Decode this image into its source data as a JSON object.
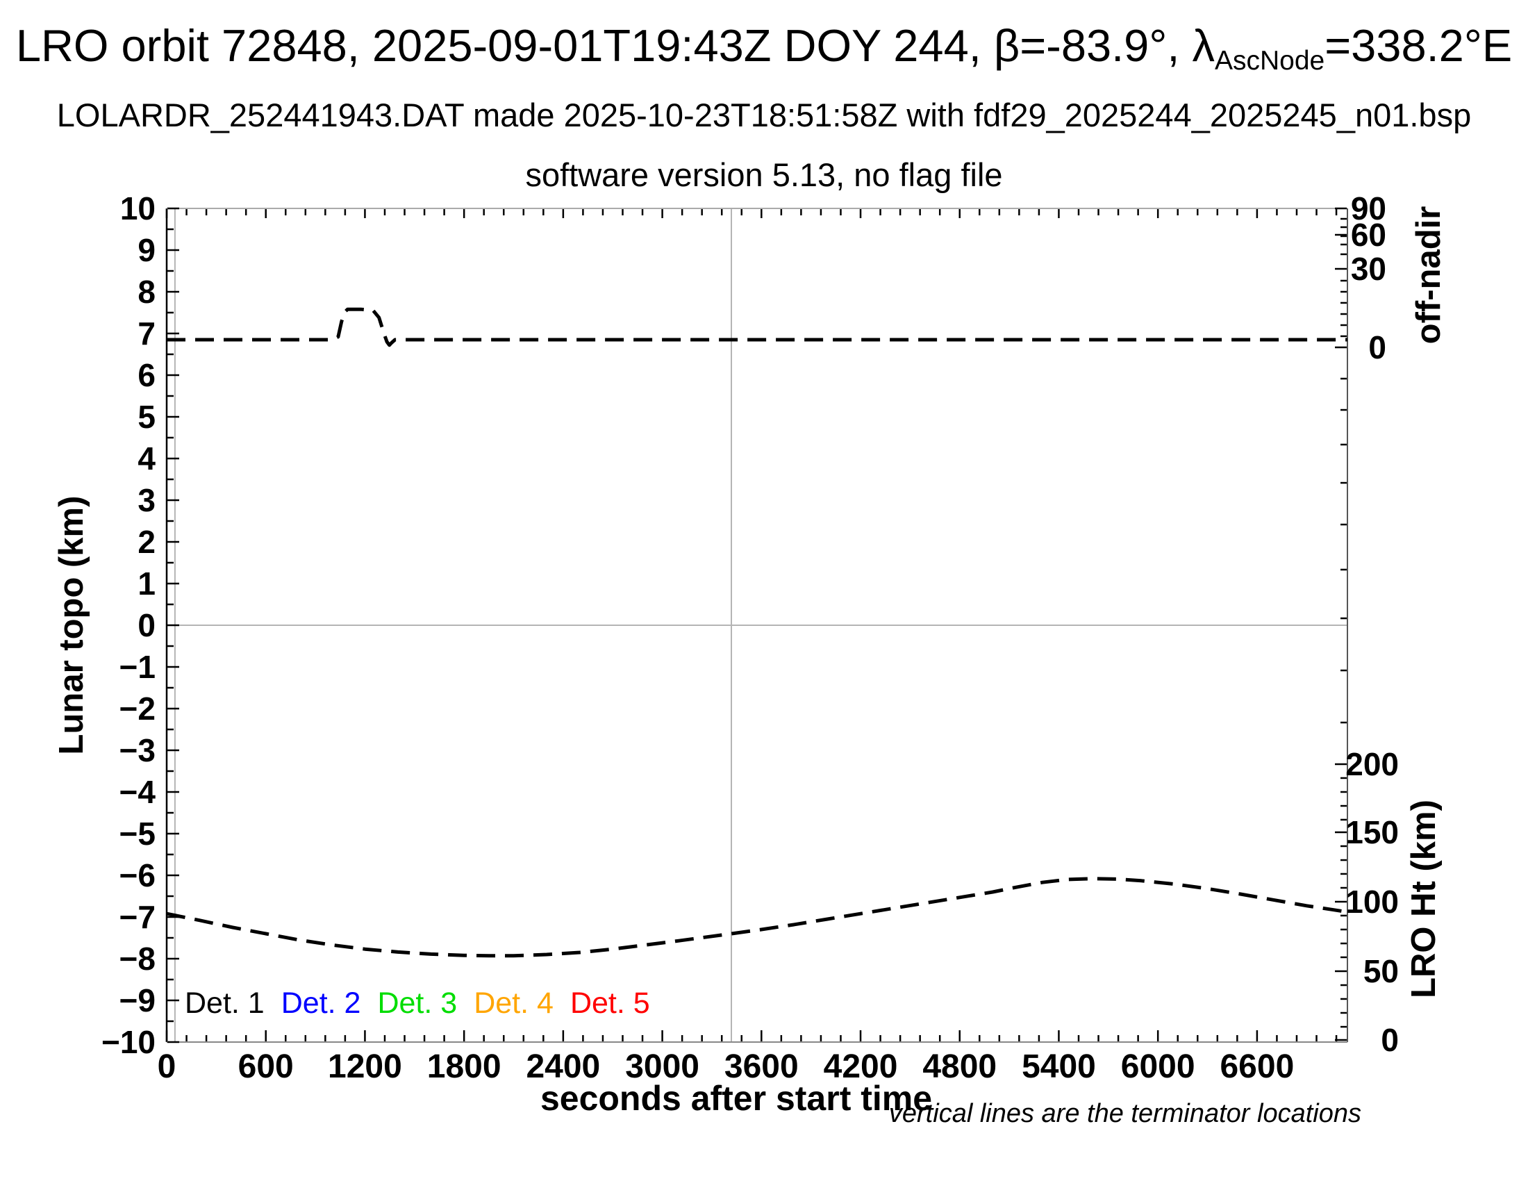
{
  "header": {
    "title_prefix": "LRO orbit 72848, 2025-09-01T19:43Z DOY 244, β=-83.9°, λ",
    "title_subscript": "AscNode",
    "title_suffix": "=338.2°E",
    "subtitle1": "LOLARDR_252441943.DAT made 2025-10-23T18:51:58Z with fdf29_2025244_2025245_n01.bsp",
    "subtitle2": "software version 5.13, no flag file"
  },
  "chart_data": {
    "type": "line",
    "title": "LRO orbit 72848, 2025-09-01T19:43Z DOY 244, β=-83.9°, λAscNode=338.2°E",
    "x_axis": {
      "label": "seconds after start time",
      "min": 0,
      "max": 7147,
      "major_step": 600,
      "minor_step": 120,
      "labeled_ticks": [
        0,
        600,
        1200,
        1800,
        2400,
        3000,
        3600,
        4200,
        4800,
        5400,
        6000,
        6600
      ]
    },
    "y_left": {
      "label": "Lunar topo (km)",
      "min": -10,
      "max": 10,
      "major_step": 1,
      "minor_step": 0.5
    },
    "y_right_offnadir": {
      "label": "off-nadir",
      "scale": "nonlinear (degrees)",
      "ticks": [
        {
          "value": "90",
          "frac": 0.0
        },
        {
          "value": "60",
          "frac": 0.0317
        },
        {
          "value": "30",
          "frac": 0.0725
        },
        {
          "value": "0",
          "frac": 0.1667
        }
      ],
      "minor_fracs": [
        0.0125,
        0.0225,
        0.0333,
        0.0433,
        0.055,
        0.0867,
        0.1,
        0.1133,
        0.1267,
        0.14,
        0.1533,
        0.2042,
        0.2417,
        0.2833,
        0.3292,
        0.3792,
        0.4333,
        0.4917,
        0.5542,
        0.6167
      ]
    },
    "y_right_ht": {
      "label": "LRO Ht (km)",
      "scale": "linear (km)",
      "ticks": [
        {
          "value": "200",
          "frac": 0.6667
        },
        {
          "value": "150",
          "frac": 0.7483
        },
        {
          "value": "100",
          "frac": 0.8317
        },
        {
          "value": "50",
          "frac": 0.915
        },
        {
          "value": "0",
          "frac": 0.9975
        }
      ],
      "minor_fracs": [
        0.6833,
        0.7,
        0.7167,
        0.7333,
        0.765,
        0.7817,
        0.7983,
        0.815,
        0.8483,
        0.865,
        0.8817,
        0.8983,
        0.9317,
        0.9483,
        0.965,
        0.9817
      ]
    },
    "reference_lines": {
      "zero_topo_line": 0,
      "terminators_sec": [
        50,
        3418
      ]
    },
    "series": [
      {
        "name": "off-nadir angle",
        "display_axis": "y_left",
        "style": "dashed",
        "color": "#000000",
        "description": "≈0° off-nadir for whole orbit except a slew to ≈15° near t≈1050–1360 s",
        "points": [
          [
            0,
            6.85
          ],
          [
            1005,
            6.85
          ],
          [
            1038,
            6.92
          ],
          [
            1058,
            7.28
          ],
          [
            1075,
            7.5
          ],
          [
            1095,
            7.58
          ],
          [
            1175,
            7.58
          ],
          [
            1250,
            7.55
          ],
          [
            1285,
            7.38
          ],
          [
            1315,
            7.0
          ],
          [
            1333,
            6.8
          ],
          [
            1348,
            6.72
          ],
          [
            1362,
            6.78
          ],
          [
            1382,
            6.85
          ],
          [
            7147,
            6.85
          ]
        ]
      },
      {
        "name": "LRO height",
        "display_axis": "y_left",
        "style": "dashed",
        "color": "#000000",
        "description": "LRO height ≈92 km at t=0, minimum ≈61 km near t≈1950 s, maximum ≈118 km near t≈5500 s, ≈90 km at end",
        "points": [
          [
            0,
            -6.92
          ],
          [
            200,
            -7.08
          ],
          [
            400,
            -7.25
          ],
          [
            600,
            -7.4
          ],
          [
            800,
            -7.55
          ],
          [
            1000,
            -7.67
          ],
          [
            1200,
            -7.77
          ],
          [
            1400,
            -7.84
          ],
          [
            1600,
            -7.89
          ],
          [
            1800,
            -7.92
          ],
          [
            1950,
            -7.93
          ],
          [
            2100,
            -7.93
          ],
          [
            2300,
            -7.9
          ],
          [
            2500,
            -7.85
          ],
          [
            2700,
            -7.77
          ],
          [
            2900,
            -7.67
          ],
          [
            3100,
            -7.57
          ],
          [
            3418,
            -7.4
          ],
          [
            3600,
            -7.3
          ],
          [
            3800,
            -7.18
          ],
          [
            4000,
            -7.05
          ],
          [
            4200,
            -6.92
          ],
          [
            4400,
            -6.79
          ],
          [
            4600,
            -6.66
          ],
          [
            4800,
            -6.53
          ],
          [
            5000,
            -6.4
          ],
          [
            5150,
            -6.28
          ],
          [
            5300,
            -6.17
          ],
          [
            5450,
            -6.1
          ],
          [
            5600,
            -6.08
          ],
          [
            5750,
            -6.09
          ],
          [
            5900,
            -6.13
          ],
          [
            6100,
            -6.21
          ],
          [
            6300,
            -6.32
          ],
          [
            6500,
            -6.45
          ],
          [
            6700,
            -6.59
          ],
          [
            6900,
            -6.73
          ],
          [
            7050,
            -6.82
          ],
          [
            7147,
            -6.88
          ]
        ]
      }
    ],
    "legend": [
      {
        "label": "Det. 1",
        "color": "#000000"
      },
      {
        "label": "Det. 2",
        "color": "#0000ff"
      },
      {
        "label": "Det. 3",
        "color": "#00dd00"
      },
      {
        "label": "Det. 4",
        "color": "#ffa500"
      },
      {
        "label": "Det. 5",
        "color": "#ff0000"
      }
    ],
    "annotation": "vertical lines are the terminator locations",
    "colors": {
      "curve": "#000000",
      "reference_gray": "#b4b4b4",
      "frame_left": "#000000",
      "frame_top": "#aaaaaa",
      "frame_right": "#555555",
      "frame_bottom": "#888888"
    },
    "grid": "off",
    "legend_position": "bottom-left inside plot"
  }
}
